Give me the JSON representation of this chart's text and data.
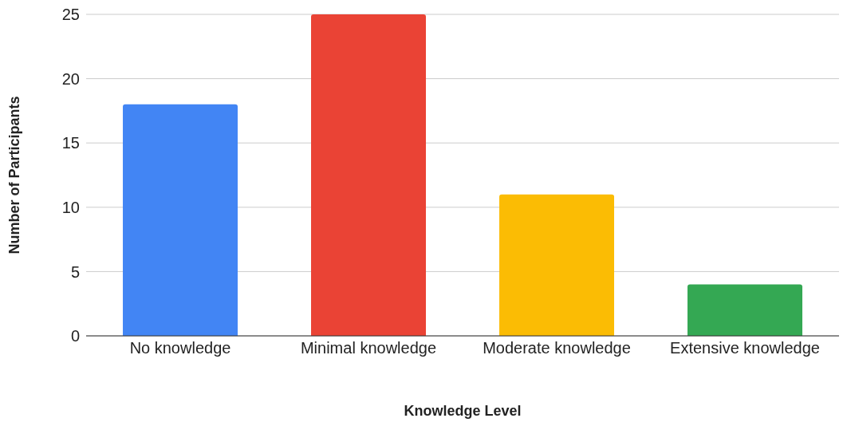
{
  "chart_data": {
    "type": "bar",
    "xlabel": "Knowledge Level",
    "ylabel": "Number of Participants",
    "categories": [
      "No knowledge",
      "Minimal knowledge",
      "Moderate knowledge",
      "Extensive knowledge"
    ],
    "values": [
      18,
      25,
      11,
      4
    ],
    "colors": [
      "#4285f4",
      "#ea4335",
      "#fbbc04",
      "#34a853"
    ],
    "ylim": [
      0,
      25
    ],
    "yticks": [
      0,
      5,
      10,
      15,
      20,
      25
    ],
    "grid": "y"
  }
}
